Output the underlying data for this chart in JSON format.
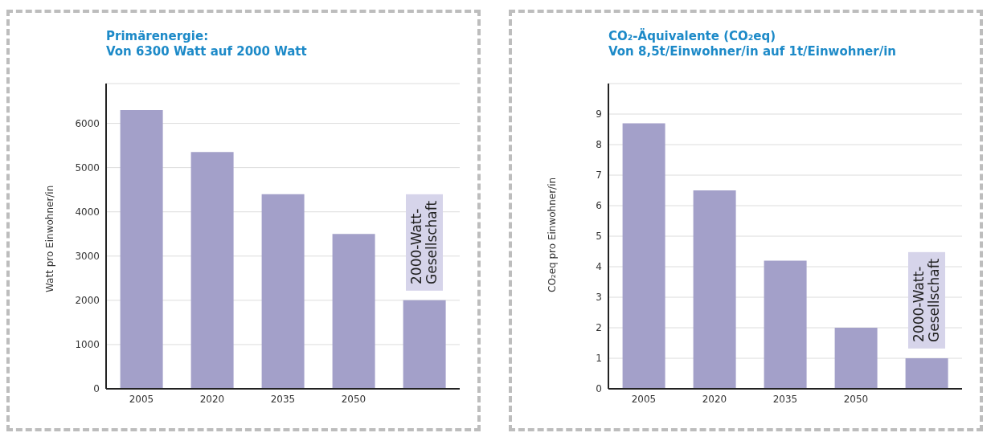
{
  "chart_data": [
    {
      "type": "bar",
      "title": "Primärenergie:",
      "subtitle": "Von 6300 Watt auf 2000 Watt",
      "ylabel": "Watt pro Einwohner/in",
      "categories": [
        "2005",
        "2020",
        "2035",
        "2050",
        null
      ],
      "values": [
        6300,
        5350,
        4400,
        3500,
        2000
      ],
      "color": "#a3a0c9",
      "ylim": [
        0,
        6900
      ],
      "yticks": [
        0,
        1000,
        2000,
        3000,
        4000,
        5000,
        6000
      ],
      "grid": "y",
      "annotations": [
        "2000-Watt-\nGesellschaft"
      ]
    },
    {
      "type": "bar",
      "title": "CO₂-Äquivalente (CO₂eq)",
      "subtitle": "Von 8,5t/Einwohner/in auf 1t/Einwohner/in",
      "ylabel": "CO₂eq pro Einwohner/in",
      "categories": [
        "2005",
        "2020",
        "2035",
        "2050",
        null
      ],
      "values": [
        8.7,
        6.5,
        4.2,
        2.0,
        1.0
      ],
      "color": "#a3a0c9",
      "ylim": [
        0,
        10
      ],
      "yticks": [
        0,
        1,
        2,
        3,
        4,
        5,
        6,
        7,
        8,
        9
      ],
      "grid": "y",
      "annotations": [
        "2000-Watt-\nGesellschaft"
      ]
    }
  ]
}
